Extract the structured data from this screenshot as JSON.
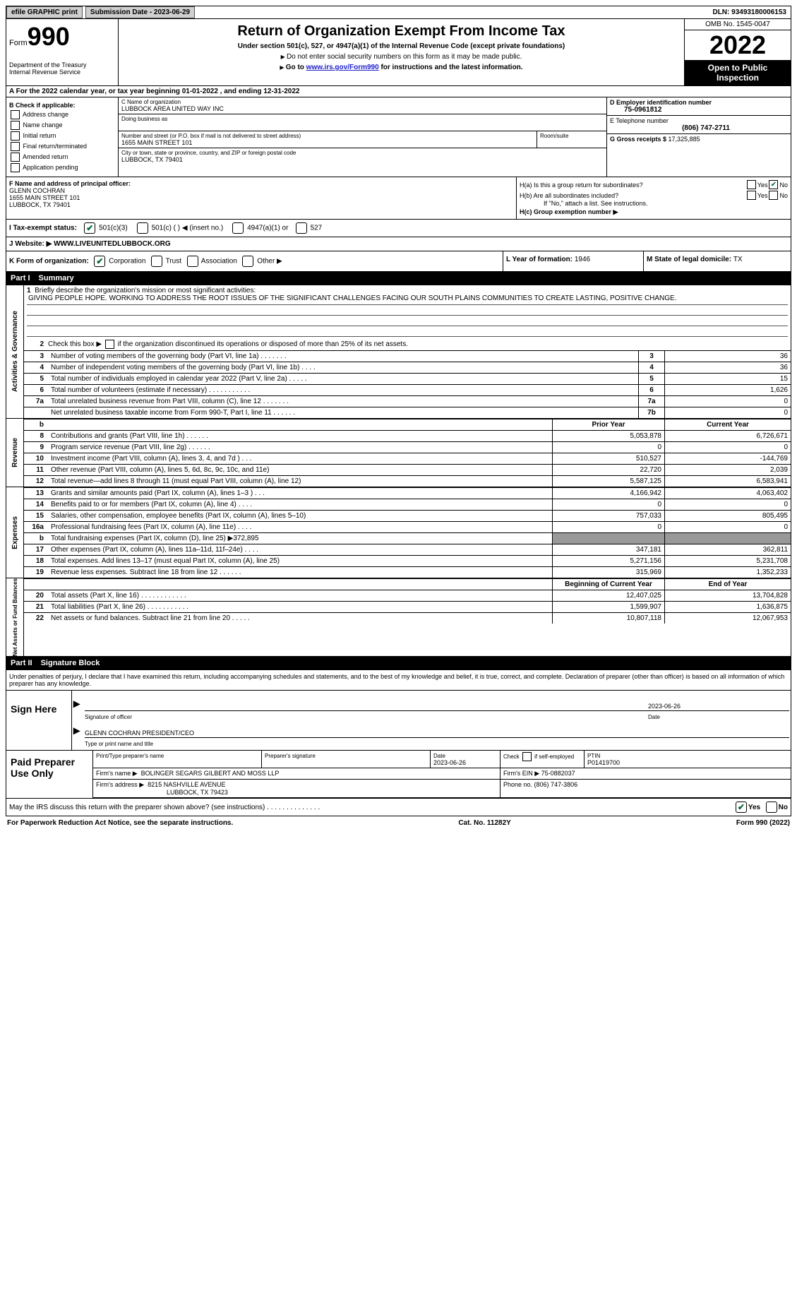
{
  "topbar": {
    "efile": "efile GRAPHIC print",
    "sub_label": "Submission Date - 2023-06-29",
    "dln": "DLN: 93493180006153"
  },
  "header": {
    "form_word": "Form",
    "form_num": "990",
    "dept": "Department of the Treasury\nInternal Revenue Service",
    "title": "Return of Organization Exempt From Income Tax",
    "sub1": "Under section 501(c), 527, or 4947(a)(1) of the Internal Revenue Code (except private foundations)",
    "sub2": "Do not enter social security numbers on this form as it may be made public.",
    "sub3_a": "Go to ",
    "sub3_link": "www.irs.gov/Form990",
    "sub3_b": " for instructions and the latest information.",
    "omb": "OMB No. 1545-0047",
    "year": "2022",
    "inspect": "Open to Public Inspection"
  },
  "a": {
    "text": "A For the 2022 calendar year, or tax year beginning 01-01-2022    , and ending 12-31-2022"
  },
  "b": {
    "label": "B Check if applicable:",
    "opts": [
      "Address change",
      "Name change",
      "Initial return",
      "Final return/terminated",
      "Amended return",
      "Application pending"
    ]
  },
  "c": {
    "name_lab": "C Name of organization",
    "name": "LUBBOCK AREA UNITED WAY INC",
    "dba_lab": "Doing business as",
    "addr_lab": "Number and street (or P.O. box if mail is not delivered to street address)",
    "room_lab": "Room/suite",
    "addr": "1655 MAIN STREET 101",
    "city_lab": "City or town, state or province, country, and ZIP or foreign postal code",
    "city": "LUBBOCK, TX  79401"
  },
  "d": {
    "lab": "D Employer identification number",
    "val": "75-0961812"
  },
  "e": {
    "lab": "E Telephone number",
    "val": "(806) 747-2711"
  },
  "g": {
    "lab": "G Gross receipts $ ",
    "val": "17,325,885"
  },
  "f": {
    "lab": "F  Name and address of principal officer:",
    "name": "GLENN COCHRAN",
    "addr1": "1655 MAIN STREET 101",
    "addr2": "LUBBOCK, TX  79401"
  },
  "h": {
    "a": "H(a)  Is this a group return for subordinates?",
    "b": "H(b)  Are all subordinates included?",
    "b2": "If \"No,\" attach a list. See instructions.",
    "c": "H(c)  Group exemption number ▶",
    "yes": "Yes",
    "no": "No"
  },
  "i": {
    "lab": "I   Tax-exempt status:",
    "o1": "501(c)(3)",
    "o2": "501(c) (   ) ◀ (insert no.)",
    "o3": "4947(a)(1) or",
    "o4": "527"
  },
  "j": {
    "lab": "J   Website: ▶",
    "val": "  WWW.LIVEUNITEDLUBBOCK.ORG"
  },
  "k": {
    "lab": "K Form of organization:",
    "o1": "Corporation",
    "o2": "Trust",
    "o3": "Association",
    "o4": "Other ▶"
  },
  "l": {
    "lab": "L Year of formation: ",
    "val": "1946"
  },
  "m": {
    "lab": "M State of legal domicile: ",
    "val": "TX"
  },
  "parts": {
    "p1": "Part I",
    "p1t": "Summary",
    "p2": "Part II",
    "p2t": "Signature Block"
  },
  "summary": {
    "s1": {
      "tab": "Activities & Governance",
      "l1": "Briefly describe the organization's mission or most significant activities:",
      "mission": "GIVING PEOPLE HOPE. WORKING TO ADDRESS THE ROOT ISSUES OF THE SIGNIFICANT CHALLENGES FACING OUR SOUTH PLAINS COMMUNITIES TO CREATE LASTING, POSITIVE CHANGE.",
      "l2": "Check this box ▶       if the organization discontinued its operations or disposed of more than 25% of its net assets.",
      "rows": [
        {
          "n": "3",
          "t": "Number of voting members of the governing body (Part VI, line 1a)   .    .    .    .    .    .    .",
          "b": "3",
          "v": "36"
        },
        {
          "n": "4",
          "t": "Number of independent voting members of the governing body (Part VI, line 1b)   .    .    .    .",
          "b": "4",
          "v": "36"
        },
        {
          "n": "5",
          "t": "Total number of individuals employed in calendar year 2022 (Part V, line 2a)   .    .    .    .    .",
          "b": "5",
          "v": "15"
        },
        {
          "n": "6",
          "t": "Total number of volunteers (estimate if necessary)    .    .    .    .    .    .    .    .    .    .    .",
          "b": "6",
          "v": "1,626"
        },
        {
          "n": "7a",
          "t": "Total unrelated business revenue from Part VIII, column (C), line 12   .    .    .    .    .    .    .",
          "b": "7a",
          "v": "0"
        },
        {
          "n": "",
          "t": "Net unrelated business taxable income from Form 990-T, Part I, line 11   .    .    .    .    .    .",
          "b": "7b",
          "v": "0"
        }
      ]
    },
    "pyh": "Prior Year",
    "cyh": "Current Year",
    "rev": {
      "tab": "Revenue",
      "rows": [
        {
          "n": "8",
          "t": "Contributions and grants (Part VIII, line 1h)   .    .    .    .    .    .",
          "pv": "5,053,878",
          "cv": "6,726,671",
          "b": "b"
        },
        {
          "n": "9",
          "t": "Program service revenue (Part VIII, line 2g)   .    .    .    .    .    .",
          "pv": "0",
          "cv": "0"
        },
        {
          "n": "10",
          "t": "Investment income (Part VIII, column (A), lines 3, 4, and 7d )   .    .    .",
          "pv": "510,527",
          "cv": "-144,769"
        },
        {
          "n": "11",
          "t": "Other revenue (Part VIII, column (A), lines 5, 6d, 8c, 9c, 10c, and 11e)",
          "pv": "22,720",
          "cv": "2,039"
        },
        {
          "n": "12",
          "t": "Total revenue—add lines 8 through 11 (must equal Part VIII, column (A), line 12)",
          "pv": "5,587,125",
          "cv": "6,583,941"
        }
      ]
    },
    "exp": {
      "tab": "Expenses",
      "rows": [
        {
          "n": "13",
          "t": "Grants and similar amounts paid (Part IX, column (A), lines 1–3 )   .    .    .",
          "pv": "4,166,942",
          "cv": "4,063,402"
        },
        {
          "n": "14",
          "t": "Benefits paid to or for members (Part IX, column (A), line 4)   .    .    .    .",
          "pv": "0",
          "cv": "0"
        },
        {
          "n": "15",
          "t": "Salaries, other compensation, employee benefits (Part IX, column (A), lines 5–10)",
          "pv": "757,033",
          "cv": "805,495"
        },
        {
          "n": "16a",
          "t": "Professional fundraising fees (Part IX, column (A), line 11e)   .    .    .    .",
          "pv": "0",
          "cv": "0"
        },
        {
          "n": "b",
          "t": "Total fundraising expenses (Part IX, column (D), line 25) ▶372,895",
          "shade": true
        },
        {
          "n": "17",
          "t": "Other expenses (Part IX, column (A), lines 11a–11d, 11f–24e)   .    .    .    .",
          "pv": "347,181",
          "cv": "362,811"
        },
        {
          "n": "18",
          "t": "Total expenses. Add lines 13–17 (must equal Part IX, column (A), line 25)",
          "pv": "5,271,156",
          "cv": "5,231,708"
        },
        {
          "n": "19",
          "t": "Revenue less expenses. Subtract line 18 from line 12   .    .    .    .    .    .",
          "pv": "315,969",
          "cv": "1,352,233"
        }
      ]
    },
    "boy": "Beginning of Current Year",
    "eoy": "End of Year",
    "net": {
      "tab": "Net Assets or Fund Balances",
      "rows": [
        {
          "n": "20",
          "t": "Total assets (Part X, line 16)   .    .    .    .    .    .    .    .    .    .    .    .",
          "pv": "12,407,025",
          "cv": "13,704,828"
        },
        {
          "n": "21",
          "t": "Total liabilities (Part X, line 26)   .    .    .    .    .    .    .    .    .    .    .",
          "pv": "1,599,907",
          "cv": "1,636,875"
        },
        {
          "n": "22",
          "t": "Net assets or fund balances. Subtract line 21 from line 20   .    .    .    .    .",
          "pv": "10,807,118",
          "cv": "12,067,953"
        }
      ]
    }
  },
  "pen": "Under penalties of perjury, I declare that I have examined this return, including accompanying schedules and statements, and to the best of my knowledge and belief, it is true, correct, and complete. Declaration of preparer (other than officer) is based on all information of which preparer has any knowledge.",
  "sign": {
    "lab": "Sign Here",
    "sig_lab": "Signature of officer",
    "date": "2023-06-26",
    "date_lab": "Date",
    "name": "GLENN COCHRAN  PRESIDENT/CEO",
    "name_lab": "Type or print name and title"
  },
  "prep": {
    "lab": "Paid Preparer Use Only",
    "h1": "Print/Type preparer's name",
    "h2": "Preparer's signature",
    "h3": "Date",
    "h3v": "2023-06-26",
    "h4a": "Check",
    "h4b": " if self-employed",
    "h5": "PTIN",
    "h5v": "P01419700",
    "firm_lab": "Firm's name      ▶",
    "firm": "BOLINGER SEGARS GILBERT AND MOSS LLP",
    "ein_lab": "Firm's EIN ▶ ",
    "ein": "75-0882037",
    "addr_lab": "Firm's address  ▶",
    "addr1": "8215 NASHVILLE AVENUE",
    "addr2": "LUBBOCK, TX  79423",
    "phone_lab": "Phone no. ",
    "phone": "(806) 747-3806"
  },
  "disc": {
    "t": "May the IRS discuss this return with the preparer shown above? (see instructions)   .    .    .    .    .    .    .    .    .    .    .    .    .    .",
    "yes": "Yes",
    "no": "No"
  },
  "footer": {
    "l": "For Paperwork Reduction Act Notice, see the separate instructions.",
    "c": "Cat. No. 11282Y",
    "r": "Form 990 (2022)"
  }
}
